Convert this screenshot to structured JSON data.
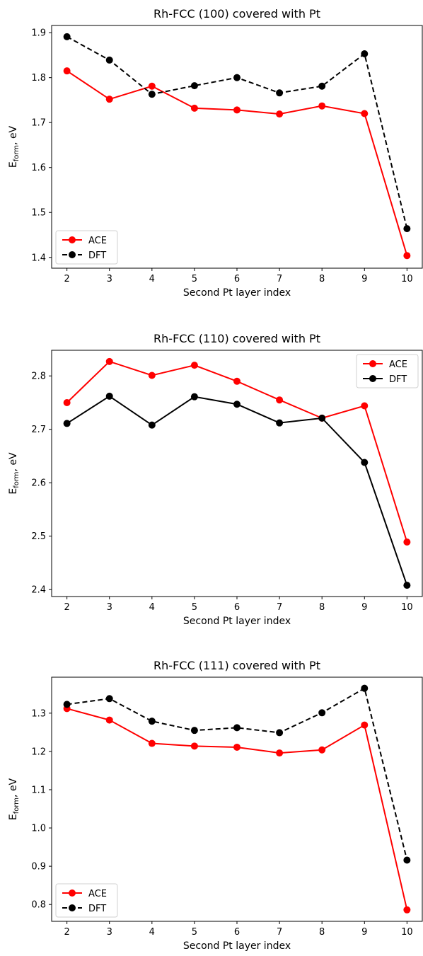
{
  "chart_data": [
    {
      "type": "line",
      "title": "Rh-FCC (100) covered with Pt",
      "xlabel": "Second Pt layer index",
      "ylabel_main": "E",
      "ylabel_sub": "form",
      "ylabel_suffix": ", eV",
      "x": [
        2,
        3,
        4,
        5,
        6,
        7,
        8,
        9,
        10
      ],
      "xlim": [
        1.64,
        10.36
      ],
      "ylim": [
        1.376,
        1.916
      ],
      "yticks": [
        1.4,
        1.5,
        1.6,
        1.7,
        1.8,
        1.9
      ],
      "legend": "bottom-left",
      "grid": false,
      "series": [
        {
          "name": "ACE",
          "color": "#ff0000",
          "dash": "solid",
          "values": [
            1.815,
            1.752,
            1.781,
            1.732,
            1.728,
            1.719,
            1.737,
            1.72,
            1.404
          ]
        },
        {
          "name": "DFT",
          "color": "#000000",
          "dash": "dashed",
          "values": [
            1.891,
            1.839,
            1.763,
            1.782,
            1.8,
            1.766,
            1.781,
            1.853,
            1.464
          ]
        }
      ]
    },
    {
      "type": "line",
      "title": "Rh-FCC (110) covered with Pt",
      "xlabel": "Second Pt layer index",
      "ylabel_main": "E",
      "ylabel_sub": "form",
      "ylabel_suffix": ", eV",
      "x": [
        2,
        3,
        4,
        5,
        6,
        7,
        8,
        9,
        10
      ],
      "xlim": [
        1.64,
        10.36
      ],
      "ylim": [
        2.387,
        2.848
      ],
      "yticks": [
        2.4,
        2.5,
        2.6,
        2.7,
        2.8
      ],
      "legend": "top-right",
      "grid": false,
      "series": [
        {
          "name": "ACE",
          "color": "#ff0000",
          "dash": "solid",
          "values": [
            2.75,
            2.827,
            2.801,
            2.82,
            2.79,
            2.755,
            2.721,
            2.744,
            2.489
          ]
        },
        {
          "name": "DFT",
          "color": "#000000",
          "dash": "solid",
          "values": [
            2.711,
            2.762,
            2.708,
            2.761,
            2.747,
            2.712,
            2.721,
            2.638,
            2.408
          ]
        }
      ]
    },
    {
      "type": "line",
      "title": "Rh-FCC (111) covered with Pt",
      "xlabel": "Second Pt layer index",
      "ylabel_main": "E",
      "ylabel_sub": "form",
      "ylabel_suffix": ", eV",
      "x": [
        2,
        3,
        4,
        5,
        6,
        7,
        8,
        9,
        10
      ],
      "xlim": [
        1.64,
        10.36
      ],
      "ylim": [
        0.756,
        1.394
      ],
      "yticks": [
        0.8,
        0.9,
        1.0,
        1.1,
        1.2,
        1.3
      ],
      "legend": "bottom-left",
      "grid": false,
      "series": [
        {
          "name": "ACE",
          "color": "#ff0000",
          "dash": "solid",
          "values": [
            1.312,
            1.282,
            1.221,
            1.214,
            1.211,
            1.196,
            1.204,
            1.269,
            0.786
          ]
        },
        {
          "name": "DFT",
          "color": "#000000",
          "dash": "dashed",
          "values": [
            1.323,
            1.338,
            1.279,
            1.255,
            1.262,
            1.249,
            1.301,
            1.365,
            0.916
          ]
        }
      ]
    }
  ]
}
